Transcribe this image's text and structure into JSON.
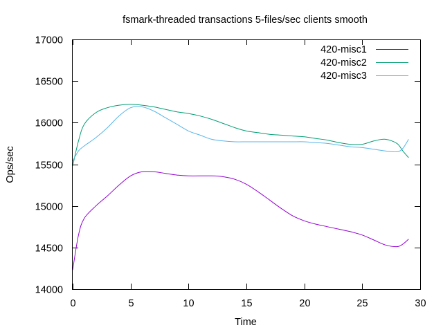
{
  "chart_data": {
    "type": "line",
    "title": "fsmark-threaded transactions 5-files/sec clients smooth",
    "xlabel": "Time",
    "ylabel": "Ops/sec",
    "xlim": [
      0,
      30
    ],
    "ylim": [
      14000,
      17000
    ],
    "xticks": [
      0,
      5,
      10,
      15,
      20,
      25,
      30
    ],
    "yticks": [
      14000,
      14500,
      15000,
      15500,
      16000,
      16500,
      17000
    ],
    "grid": false,
    "legend_position": "top-right",
    "series": [
      {
        "name": "420-misc1",
        "color": "#9400d3",
        "points": [
          [
            0,
            14230
          ],
          [
            0.5,
            14650
          ],
          [
            1,
            14850
          ],
          [
            2,
            15000
          ],
          [
            3,
            15120
          ],
          [
            4,
            15250
          ],
          [
            5,
            15360
          ],
          [
            6,
            15410
          ],
          [
            7,
            15410
          ],
          [
            8,
            15390
          ],
          [
            9,
            15370
          ],
          [
            10,
            15360
          ],
          [
            12,
            15360
          ],
          [
            13,
            15350
          ],
          [
            14,
            15320
          ],
          [
            15,
            15260
          ],
          [
            16,
            15170
          ],
          [
            17,
            15070
          ],
          [
            18,
            14970
          ],
          [
            19,
            14880
          ],
          [
            20,
            14820
          ],
          [
            21,
            14780
          ],
          [
            22,
            14750
          ],
          [
            23,
            14720
          ],
          [
            24,
            14690
          ],
          [
            25,
            14650
          ],
          [
            26,
            14590
          ],
          [
            27,
            14530
          ],
          [
            28,
            14510
          ],
          [
            28.5,
            14540
          ],
          [
            29,
            14600
          ]
        ]
      },
      {
        "name": "420-misc2",
        "color": "#009e73",
        "points": [
          [
            0,
            15480
          ],
          [
            0.5,
            15780
          ],
          [
            1,
            15980
          ],
          [
            2,
            16120
          ],
          [
            3,
            16180
          ],
          [
            4,
            16210
          ],
          [
            5,
            16220
          ],
          [
            6,
            16210
          ],
          [
            7,
            16190
          ],
          [
            8,
            16160
          ],
          [
            9,
            16130
          ],
          [
            10,
            16110
          ],
          [
            11,
            16080
          ],
          [
            12,
            16040
          ],
          [
            13,
            15990
          ],
          [
            14,
            15940
          ],
          [
            15,
            15900
          ],
          [
            16,
            15880
          ],
          [
            17,
            15860
          ],
          [
            18,
            15850
          ],
          [
            19,
            15840
          ],
          [
            20,
            15830
          ],
          [
            21,
            15810
          ],
          [
            22,
            15790
          ],
          [
            23,
            15760
          ],
          [
            24,
            15740
          ],
          [
            25,
            15740
          ],
          [
            26,
            15780
          ],
          [
            27,
            15800
          ],
          [
            28,
            15750
          ],
          [
            28.5,
            15660
          ],
          [
            29,
            15580
          ]
        ]
      },
      {
        "name": "420-misc3",
        "color": "#56b4e9",
        "points": [
          [
            0,
            15540
          ],
          [
            0.5,
            15660
          ],
          [
            1,
            15720
          ],
          [
            2,
            15820
          ],
          [
            3,
            15940
          ],
          [
            4,
            16080
          ],
          [
            5,
            16180
          ],
          [
            6,
            16190
          ],
          [
            7,
            16140
          ],
          [
            8,
            16060
          ],
          [
            9,
            15980
          ],
          [
            10,
            15900
          ],
          [
            11,
            15850
          ],
          [
            12,
            15800
          ],
          [
            13,
            15780
          ],
          [
            14,
            15770
          ],
          [
            15,
            15770
          ],
          [
            16,
            15770
          ],
          [
            17,
            15770
          ],
          [
            18,
            15770
          ],
          [
            19,
            15770
          ],
          [
            20,
            15770
          ],
          [
            21,
            15760
          ],
          [
            22,
            15750
          ],
          [
            23,
            15730
          ],
          [
            24,
            15710
          ],
          [
            25,
            15700
          ],
          [
            26,
            15680
          ],
          [
            27,
            15660
          ],
          [
            28,
            15650
          ],
          [
            28.5,
            15690
          ],
          [
            29,
            15800
          ]
        ]
      }
    ]
  }
}
